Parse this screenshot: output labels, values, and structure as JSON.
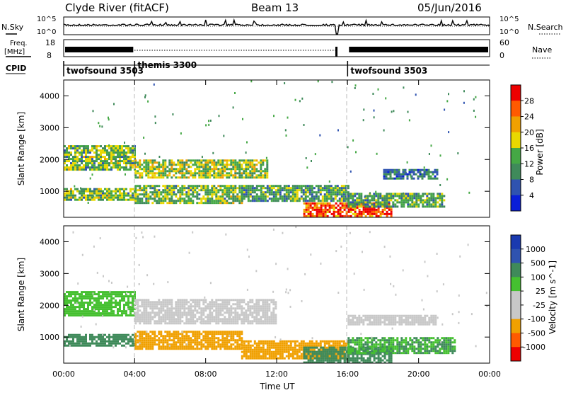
{
  "header": {
    "station": "Clyde River (fitACF)",
    "beam": "Beam 13",
    "date": "05/Jun/2016"
  },
  "sky_panel": {
    "left_label": "N.Sky",
    "right_label": "N.Search",
    "left_ticks": [
      "10^5",
      "10^0"
    ],
    "right_ticks": [
      "10^5",
      "10^0"
    ]
  },
  "freq_panel": {
    "left_label_1": "Freq.",
    "left_label_2": "[MHz]",
    "right_label": "Nave",
    "left_ticks": [
      "18",
      "8"
    ],
    "right_ticks": [
      "60",
      "0"
    ]
  },
  "cpid": {
    "label": "CPID",
    "modes": [
      {
        "name": "twofsound 3503",
        "start_hour": 0
      },
      {
        "name": "themis 3300",
        "start_hour": 4
      },
      {
        "name": "twofsound 3503",
        "start_hour": 16
      }
    ]
  },
  "colors": {
    "power": [
      "#0a1fd8",
      "#2f53b0",
      "#3f8a5a",
      "#45a845",
      "#e9d800",
      "#f0a000",
      "#ff5a00",
      "#ee0000"
    ],
    "velocity": [
      "#ee0000",
      "#ff5a00",
      "#f0a000",
      "#c8c8c8",
      "#c8c8c8",
      "#45c030",
      "#3f8a5a",
      "#2f53b0",
      "#1a3ab0"
    ]
  },
  "chart_data": [
    {
      "type": "heatmap",
      "panel": "power",
      "ylabel": "Slant Range [km]",
      "yticks": [
        "1000",
        "2000",
        "3000",
        "4000"
      ],
      "ylim": [
        180,
        4500
      ],
      "xlim": [
        0,
        24
      ],
      "colorbar_label": "Power [dB]",
      "colorbar_ticks": [
        "4",
        "8",
        "12",
        "16",
        "20",
        "24",
        "28"
      ],
      "colorbar_range": [
        0,
        32
      ],
      "echo_bands": [
        {
          "t0": 0.0,
          "t1": 4.0,
          "r0": 1700,
          "r1": 2450,
          "level": 14
        },
        {
          "t0": 0.0,
          "t1": 4.0,
          "r0": 700,
          "r1": 1100,
          "level": 14
        },
        {
          "t0": 4.0,
          "t1": 11.5,
          "r0": 1400,
          "r1": 2000,
          "level": 16
        },
        {
          "t0": 4.0,
          "t1": 10.0,
          "r0": 600,
          "r1": 1200,
          "level": 14
        },
        {
          "t0": 10.0,
          "t1": 16.0,
          "r0": 700,
          "r1": 1200,
          "level": 12
        },
        {
          "t0": 13.5,
          "t1": 18.5,
          "r0": 200,
          "r1": 650,
          "level": 28
        },
        {
          "t0": 16.0,
          "t1": 21.5,
          "r0": 500,
          "r1": 950,
          "level": 12
        },
        {
          "t0": 18.0,
          "t1": 21.0,
          "r0": 1400,
          "r1": 1700,
          "level": 8
        }
      ]
    },
    {
      "type": "heatmap",
      "panel": "velocity",
      "xlabel": "Time UT",
      "ylabel": "Slant Range [km]",
      "xticks": [
        "00:00",
        "04:00",
        "08:00",
        "12:00",
        "16:00",
        "20:00",
        "00:00"
      ],
      "yticks": [
        "1000",
        "2000",
        "3000",
        "4000"
      ],
      "ylim": [
        180,
        4500
      ],
      "xlim": [
        0,
        24
      ],
      "colorbar_label": "Velocity [m s^-1]",
      "colorbar_ticks": [
        "-1000",
        "-500",
        "-100",
        "-25",
        "25",
        "100",
        "500",
        "1000"
      ],
      "colorbar_range": [
        -1500,
        1500
      ],
      "echo_bands": [
        {
          "t0": 0.0,
          "t1": 4.0,
          "r0": 1700,
          "r1": 2450,
          "level": 60
        },
        {
          "t0": 0.0,
          "t1": 4.0,
          "r0": 700,
          "r1": 1100,
          "level": 150
        },
        {
          "t0": 4.0,
          "t1": 12.0,
          "r0": 1400,
          "r1": 2200,
          "level": 0
        },
        {
          "t0": 4.0,
          "t1": 10.0,
          "r0": 600,
          "r1": 1200,
          "level": -200
        },
        {
          "t0": 10.0,
          "t1": 16.0,
          "r0": 300,
          "r1": 900,
          "level": -150
        },
        {
          "t0": 13.5,
          "t1": 18.5,
          "r0": 200,
          "r1": 700,
          "level": 150
        },
        {
          "t0": 16.0,
          "t1": 22.0,
          "r0": 500,
          "r1": 1000,
          "level": 100
        },
        {
          "t0": 16.0,
          "t1": 21.0,
          "r0": 1400,
          "r1": 1700,
          "level": 0
        }
      ]
    }
  ]
}
